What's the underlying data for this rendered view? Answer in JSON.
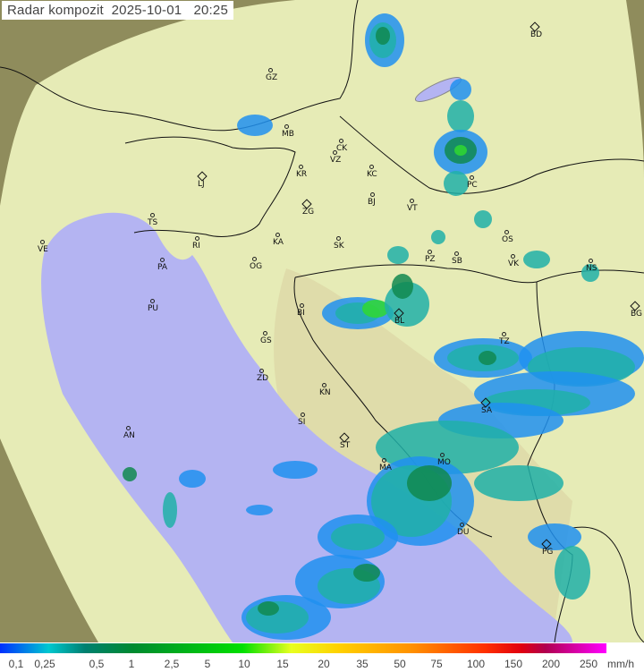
{
  "header": {
    "title": "Radar kompozit",
    "date": "2025-10-01",
    "time": "20:25"
  },
  "legend": {
    "unit": "mm/h",
    "ticks": [
      "0,1",
      "0,25",
      "0,5",
      "1",
      "2,5",
      "5",
      "10",
      "15",
      "20",
      "35",
      "50",
      "75",
      "100",
      "150",
      "200",
      "250"
    ],
    "colors": {
      "low": "#0030ff",
      "mid": "#00e000",
      "high": "#ff00ff"
    }
  },
  "map": {
    "colors": {
      "outside": "#8a8a5a",
      "land": "#e8ecb8",
      "sea": "#b4b4f4",
      "rain_light": "#2090f0",
      "rain_moderate": "#20b0a8",
      "rain_heavy": "#108850",
      "rain_strong": "#30d830"
    },
    "cities": [
      {
        "code": "BD",
        "marker": "diamond"
      },
      {
        "code": "GZ",
        "marker": "dot"
      },
      {
        "code": "MB",
        "marker": "dot"
      },
      {
        "code": "CK",
        "marker": "dot"
      },
      {
        "code": "VZ",
        "marker": "dot"
      },
      {
        "code": "KR",
        "marker": "dot"
      },
      {
        "code": "KC",
        "marker": "dot"
      },
      {
        "code": "LJ",
        "marker": "diamond"
      },
      {
        "code": "ZG",
        "marker": "diamond"
      },
      {
        "code": "BJ",
        "marker": "dot"
      },
      {
        "code": "VT",
        "marker": "dot"
      },
      {
        "code": "PC",
        "marker": "dot"
      },
      {
        "code": "TS",
        "marker": "dot"
      },
      {
        "code": "VE",
        "marker": "dot"
      },
      {
        "code": "RI",
        "marker": "dot"
      },
      {
        "code": "KA",
        "marker": "dot"
      },
      {
        "code": "SK",
        "marker": "dot"
      },
      {
        "code": "OS",
        "marker": "dot"
      },
      {
        "code": "PA",
        "marker": "dot"
      },
      {
        "code": "OG",
        "marker": "dot"
      },
      {
        "code": "PZ",
        "marker": "dot"
      },
      {
        "code": "SB",
        "marker": "dot"
      },
      {
        "code": "VK",
        "marker": "dot"
      },
      {
        "code": "NS",
        "marker": "dot"
      },
      {
        "code": "PU",
        "marker": "dot"
      },
      {
        "code": "BI",
        "marker": "dot"
      },
      {
        "code": "BL",
        "marker": "diamond"
      },
      {
        "code": "BG",
        "marker": "diamond"
      },
      {
        "code": "GS",
        "marker": "dot"
      },
      {
        "code": "TZ",
        "marker": "dot"
      },
      {
        "code": "ZD",
        "marker": "dot"
      },
      {
        "code": "KN",
        "marker": "dot"
      },
      {
        "code": "SA",
        "marker": "diamond"
      },
      {
        "code": "SI",
        "marker": "dot"
      },
      {
        "code": "AN",
        "marker": "dot"
      },
      {
        "code": "ST",
        "marker": "diamond"
      },
      {
        "code": "MA",
        "marker": "dot"
      },
      {
        "code": "MO",
        "marker": "dot"
      },
      {
        "code": "DU",
        "marker": "dot"
      },
      {
        "code": "PG",
        "marker": "diamond"
      }
    ]
  }
}
